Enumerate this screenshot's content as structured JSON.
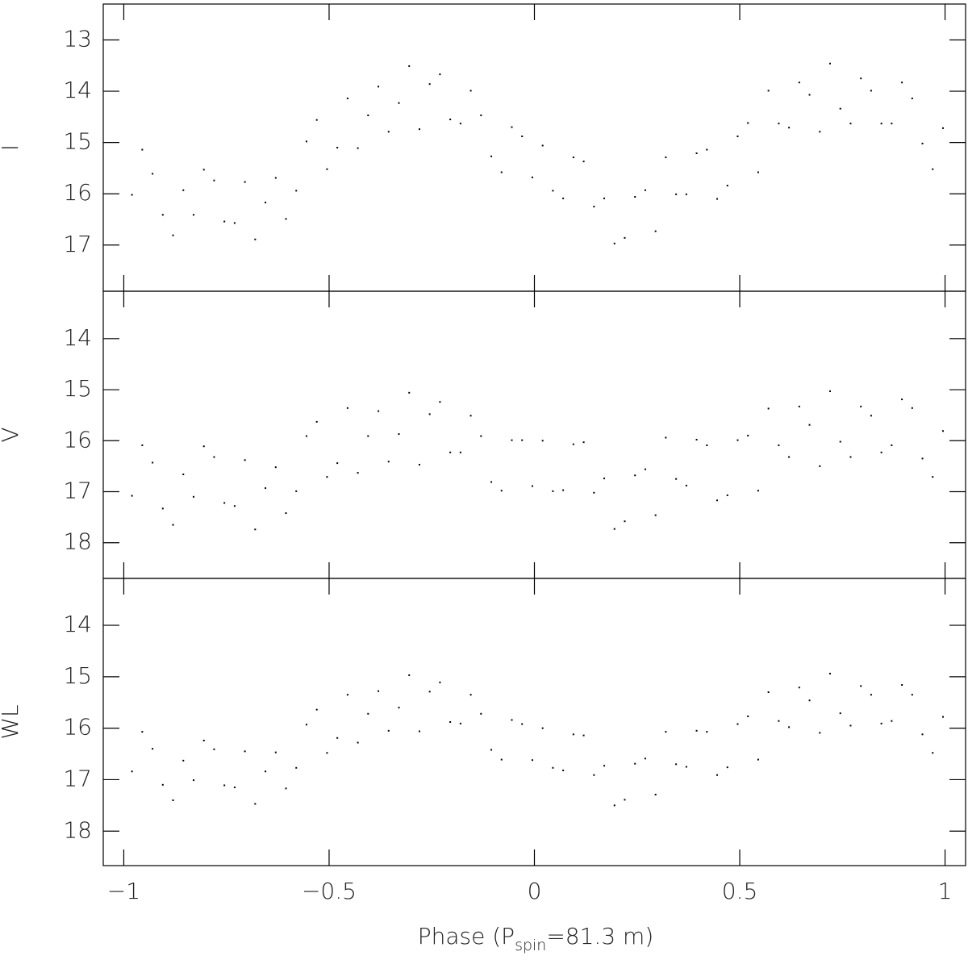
{
  "chart_data": [
    {
      "type": "scatter",
      "ylabel": "I",
      "color": "#000000",
      "ylim": [
        17.9,
        12.3
      ],
      "yticks": [
        13,
        14,
        15,
        16,
        17
      ],
      "x": [
        -0.98,
        -0.93,
        -0.88,
        -0.83,
        -0.78,
        -0.73,
        -0.68,
        -0.63,
        -0.58,
        -0.53,
        -0.48,
        -0.43,
        -0.38,
        -0.33,
        -0.28,
        -0.23,
        -0.18,
        -0.13,
        -0.08,
        -0.03,
        0.02,
        0.07,
        0.12,
        0.17,
        0.22,
        0.27,
        0.32,
        0.37,
        0.42,
        0.47,
        0.52,
        0.57,
        0.62,
        0.67,
        0.72,
        0.77,
        0.82,
        0.87,
        0.92,
        0.97,
        -0.955,
        -0.905,
        -0.855,
        -0.805,
        -0.755,
        -0.705,
        -0.655,
        -0.605,
        -0.555,
        -0.505,
        -0.455,
        -0.405,
        -0.355,
        -0.305,
        -0.255,
        -0.205,
        -0.155,
        -0.105,
        -0.055,
        -0.005,
        0.045,
        0.095,
        0.145,
        0.195,
        0.245,
        0.295,
        0.345,
        0.395,
        0.445,
        0.495,
        0.545,
        0.595,
        0.645,
        0.695,
        0.745,
        0.795,
        0.845,
        0.895,
        0.945,
        0.995
      ],
      "values": [
        16.02,
        15.61,
        16.81,
        16.41,
        15.74,
        16.57,
        16.89,
        15.69,
        15.94,
        14.56,
        15.1,
        15.11,
        13.91,
        14.23,
        14.74,
        13.67,
        14.63,
        14.47,
        15.58,
        14.88,
        15.06,
        16.09,
        15.37,
        16.09,
        16.86,
        15.93,
        15.29,
        16.01,
        15.14,
        15.84,
        14.62,
        13.99,
        14.71,
        14.07,
        13.46,
        14.63,
        13.99,
        14.63,
        14.14,
        15.52,
        15.14,
        16.41,
        15.93,
        15.53,
        16.54,
        15.77,
        16.17,
        16.49,
        14.98,
        15.52,
        14.14,
        14.47,
        14.79,
        13.51,
        13.86,
        14.55,
        13.99,
        15.27,
        14.7,
        15.68,
        15.94,
        15.29,
        16.25,
        16.97,
        16.06,
        16.73,
        16.01,
        15.21,
        16.1,
        14.88,
        15.58,
        14.63,
        13.83,
        14.79,
        14.34,
        13.75,
        14.63,
        13.83,
        15.02,
        14.72
      ]
    },
    {
      "type": "scatter",
      "ylabel": "V",
      "color": "#000000",
      "ylim": [
        18.7,
        13.07
      ],
      "yticks": [
        14,
        15,
        16,
        17,
        18
      ],
      "x": [
        -0.98,
        -0.93,
        -0.88,
        -0.83,
        -0.78,
        -0.73,
        -0.68,
        -0.63,
        -0.58,
        -0.53,
        -0.48,
        -0.43,
        -0.38,
        -0.33,
        -0.28,
        -0.23,
        -0.18,
        -0.13,
        -0.08,
        -0.03,
        0.02,
        0.07,
        0.12,
        0.17,
        0.22,
        0.27,
        0.32,
        0.37,
        0.42,
        0.47,
        0.52,
        0.57,
        0.62,
        0.67,
        0.72,
        0.77,
        0.82,
        0.87,
        0.92,
        0.97,
        -0.955,
        -0.905,
        -0.855,
        -0.805,
        -0.755,
        -0.705,
        -0.655,
        -0.605,
        -0.555,
        -0.505,
        -0.455,
        -0.405,
        -0.355,
        -0.305,
        -0.255,
        -0.205,
        -0.155,
        -0.105,
        -0.055,
        -0.005,
        0.045,
        0.095,
        0.145,
        0.195,
        0.245,
        0.295,
        0.345,
        0.395,
        0.445,
        0.495,
        0.545,
        0.595,
        0.645,
        0.695,
        0.745,
        0.795,
        0.845,
        0.895,
        0.945,
        0.995
      ],
      "values": [
        17.08,
        16.43,
        17.65,
        17.1,
        16.32,
        17.28,
        17.74,
        16.52,
        16.99,
        15.63,
        16.44,
        16.63,
        15.42,
        15.87,
        16.47,
        15.24,
        16.23,
        15.91,
        16.98,
        15.99,
        16.0,
        16.97,
        16.03,
        16.74,
        17.58,
        16.56,
        15.94,
        16.88,
        16.09,
        17.07,
        15.9,
        15.37,
        16.32,
        15.69,
        15.03,
        16.32,
        15.51,
        16.09,
        15.36,
        16.71,
        16.09,
        17.33,
        16.66,
        16.11,
        17.22,
        16.38,
        16.93,
        17.42,
        15.91,
        16.71,
        15.36,
        15.91,
        16.41,
        15.06,
        15.48,
        16.23,
        15.51,
        16.81,
        15.99,
        16.89,
        16.99,
        16.07,
        17.02,
        17.73,
        16.68,
        17.46,
        16.75,
        15.98,
        17.17,
        15.99,
        16.98,
        16.09,
        15.33,
        16.5,
        16.02,
        15.33,
        16.23,
        15.19,
        16.35,
        15.81
      ]
    },
    {
      "type": "scatter",
      "ylabel": "WL",
      "color": "#000000",
      "ylim": [
        18.67,
        13.09
      ],
      "yticks": [
        14,
        15,
        16,
        17,
        18
      ],
      "x": [
        -0.98,
        -0.93,
        -0.88,
        -0.83,
        -0.78,
        -0.73,
        -0.68,
        -0.63,
        -0.58,
        -0.53,
        -0.48,
        -0.43,
        -0.38,
        -0.33,
        -0.28,
        -0.23,
        -0.18,
        -0.13,
        -0.08,
        -0.03,
        0.02,
        0.07,
        0.12,
        0.17,
        0.22,
        0.27,
        0.32,
        0.37,
        0.42,
        0.47,
        0.52,
        0.57,
        0.62,
        0.67,
        0.72,
        0.77,
        0.82,
        0.87,
        0.92,
        0.97,
        -0.955,
        -0.905,
        -0.855,
        -0.805,
        -0.755,
        -0.705,
        -0.655,
        -0.605,
        -0.555,
        -0.505,
        -0.455,
        -0.405,
        -0.355,
        -0.305,
        -0.255,
        -0.205,
        -0.155,
        -0.105,
        -0.055,
        -0.005,
        0.045,
        0.095,
        0.145,
        0.195,
        0.245,
        0.295,
        0.345,
        0.395,
        0.445,
        0.495,
        0.545,
        0.595,
        0.645,
        0.695,
        0.745,
        0.795,
        0.845,
        0.895,
        0.945,
        0.995
      ],
      "values": [
        16.84,
        16.4,
        17.4,
        17.01,
        16.41,
        17.15,
        17.47,
        16.47,
        16.77,
        15.64,
        16.19,
        16.28,
        15.28,
        15.6,
        16.06,
        15.11,
        15.91,
        15.72,
        16.61,
        15.92,
        16.0,
        16.82,
        16.14,
        16.73,
        17.39,
        16.59,
        16.07,
        16.75,
        16.07,
        16.76,
        15.77,
        15.3,
        15.98,
        15.46,
        14.94,
        15.95,
        15.35,
        15.86,
        15.35,
        16.48,
        16.07,
        17.1,
        16.63,
        16.24,
        17.11,
        16.45,
        16.84,
        17.17,
        15.93,
        16.48,
        15.35,
        15.72,
        16.05,
        14.97,
        15.29,
        15.88,
        15.35,
        16.42,
        15.84,
        16.62,
        16.77,
        16.12,
        16.91,
        17.5,
        16.69,
        17.29,
        16.7,
        16.05,
        16.91,
        15.92,
        16.61,
        15.86,
        15.21,
        16.09,
        15.71,
        15.18,
        15.91,
        15.16,
        16.12,
        15.78
      ]
    }
  ],
  "x_axis": {
    "label": [
      "Phase (P",
      "spin",
      "=81.3 m)"
    ],
    "xlim": [
      -1.05,
      1.05
    ],
    "xticks": [
      {
        "value": -1,
        "label": "−1"
      },
      {
        "value": -0.5,
        "label": "−0.5"
      },
      0,
      0.5,
      1
    ]
  }
}
